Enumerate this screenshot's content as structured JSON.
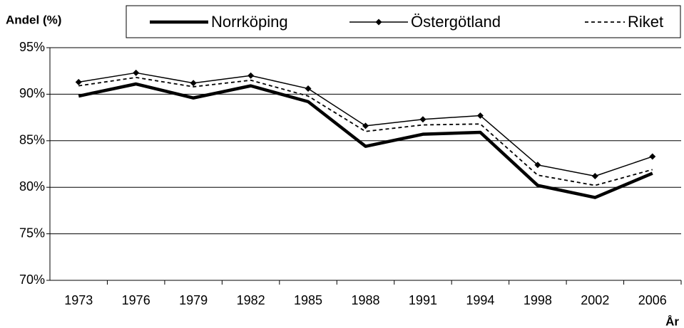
{
  "chart_data": {
    "type": "line",
    "y_label": "Andel (%)",
    "x_label": "År",
    "categories": [
      "1973",
      "1976",
      "1979",
      "1982",
      "1985",
      "1988",
      "1991",
      "1994",
      "1998",
      "2002",
      "2006"
    ],
    "series": [
      {
        "name": "Norrköping",
        "color": "#000000",
        "style": "thick",
        "values": [
          89.8,
          91.1,
          89.6,
          90.9,
          89.2,
          84.4,
          85.7,
          85.9,
          80.2,
          78.9,
          81.5
        ]
      },
      {
        "name": "Östergötland",
        "color": "#000000",
        "style": "diamond",
        "values": [
          91.3,
          92.3,
          91.2,
          92.0,
          90.6,
          86.6,
          87.3,
          87.7,
          82.4,
          81.2,
          83.3
        ]
      },
      {
        "name": "Riket",
        "color": "#000000",
        "style": "dashed",
        "values": [
          90.9,
          91.8,
          90.8,
          91.5,
          89.8,
          86.0,
          86.7,
          86.8,
          81.3,
          80.2,
          81.9
        ]
      }
    ],
    "ylim": [
      70,
      95
    ],
    "yticks": [
      {
        "value": 70,
        "label": "70%"
      },
      {
        "value": 75,
        "label": "75%"
      },
      {
        "value": 80,
        "label": "80%"
      },
      {
        "value": 85,
        "label": "85%"
      },
      {
        "value": 90,
        "label": "90%"
      },
      {
        "value": 95,
        "label": "95%"
      }
    ],
    "grid": true
  }
}
